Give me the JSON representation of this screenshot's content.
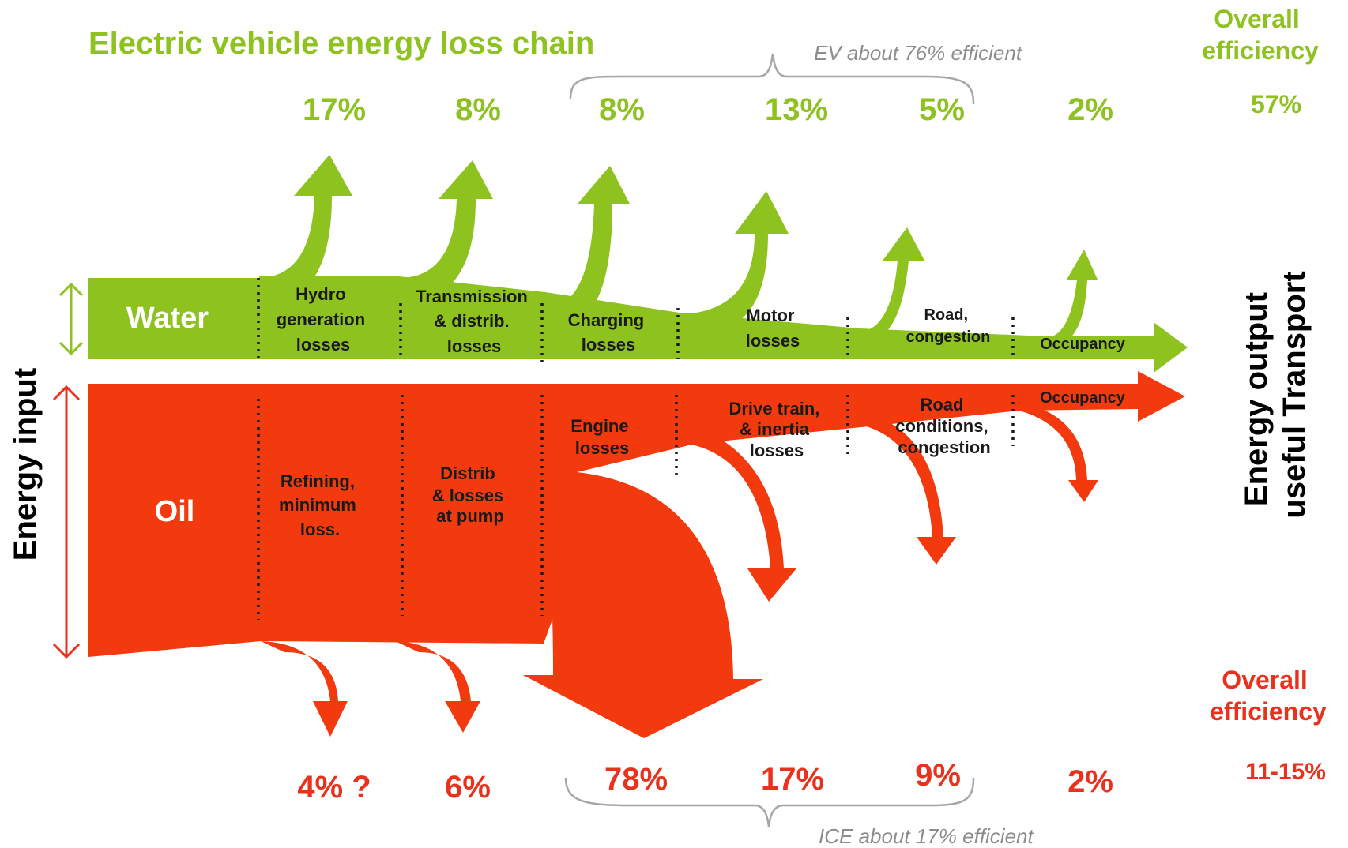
{
  "title": "Electric vehicle energy loss chain",
  "colors": {
    "ev_green": "#8DC21F",
    "ice_red": "#F23A0E",
    "ice_text_red": "#E8321E",
    "separator": "#1a1a1a",
    "brace": "#a6a6a6"
  },
  "input_axis_label": "Energy input",
  "output_axis_label": [
    "Energy output",
    "useful Transport"
  ],
  "ev": {
    "source_label": "Water",
    "stages": [
      [
        "Hydro",
        "generation",
        "losses"
      ],
      [
        "Transmission",
        "& distrib.",
        "losses"
      ],
      [
        "Charging",
        "losses"
      ],
      [
        "Motor",
        "losses"
      ],
      [
        "Road,",
        "congestion"
      ],
      [
        "Occupancy"
      ]
    ],
    "losses": [
      "17%",
      "8%",
      "8%",
      "13%",
      "5%",
      "2%"
    ],
    "overall_efficiency_label": [
      "Overall",
      "efficiency"
    ],
    "overall_efficiency_value": "57%",
    "brace_note": "EV about 76% efficient"
  },
  "ice": {
    "source_label": "Oil",
    "stages": [
      [
        "Refining,",
        "minimum",
        "loss."
      ],
      [
        "Distrib",
        "& losses",
        "at pump"
      ],
      [
        "Engine",
        "losses"
      ],
      [
        "Drive train,",
        "& inertia",
        "losses"
      ],
      [
        "Road",
        "conditions,",
        "congestion"
      ],
      [
        "Occupancy"
      ]
    ],
    "losses": [
      "4% ?",
      "6%",
      "78%",
      "17%",
      "9%",
      "2%"
    ],
    "overall_efficiency_label": [
      "Overall",
      "efficiency"
    ],
    "overall_efficiency_value": "11-15%",
    "brace_note": "ICE about 17% efficient"
  }
}
